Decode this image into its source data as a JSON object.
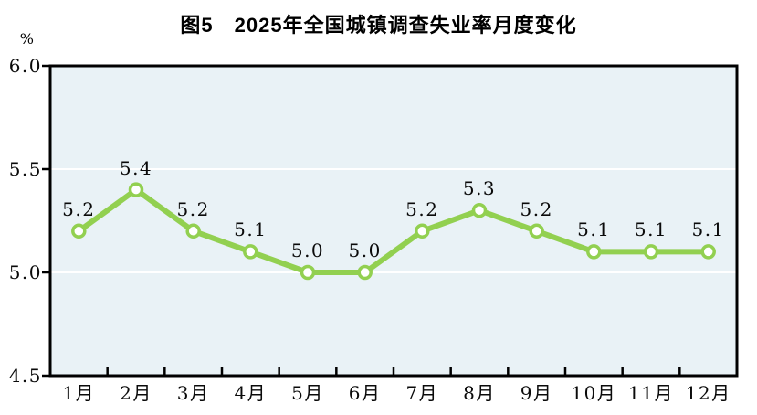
{
  "chart_data": {
    "type": "line",
    "title": "图5　2025年全国城镇调查失业率月度变化",
    "unit_label": "%",
    "categories": [
      "1月",
      "2月",
      "3月",
      "4月",
      "5月",
      "6月",
      "7月",
      "8月",
      "9月",
      "10月",
      "11月",
      "12月"
    ],
    "values": [
      5.2,
      5.4,
      5.2,
      5.1,
      5.0,
      5.0,
      5.2,
      5.3,
      5.2,
      5.1,
      5.1,
      5.1
    ],
    "data_labels": [
      "5.2",
      "5.4",
      "5.2",
      "5.1",
      "5.0",
      "5.0",
      "5.2",
      "5.3",
      "5.2",
      "5.1",
      "5.1",
      "5.1"
    ],
    "ylim": [
      4.5,
      6.0
    ],
    "yticks": [
      {
        "label": "6.0",
        "value": 6.0
      },
      {
        "label": "5.5",
        "value": 5.5
      },
      {
        "label": "5.0",
        "value": 5.0
      },
      {
        "label": "4.5",
        "value": 4.5
      }
    ],
    "grid": true,
    "legend": "none",
    "colors": {
      "line": "#92d050",
      "marker_fill": "#ffffff",
      "plot_background": "#e9f2f6",
      "gridline": "#ffffff",
      "axis": "#000000",
      "text": "#000000"
    }
  }
}
